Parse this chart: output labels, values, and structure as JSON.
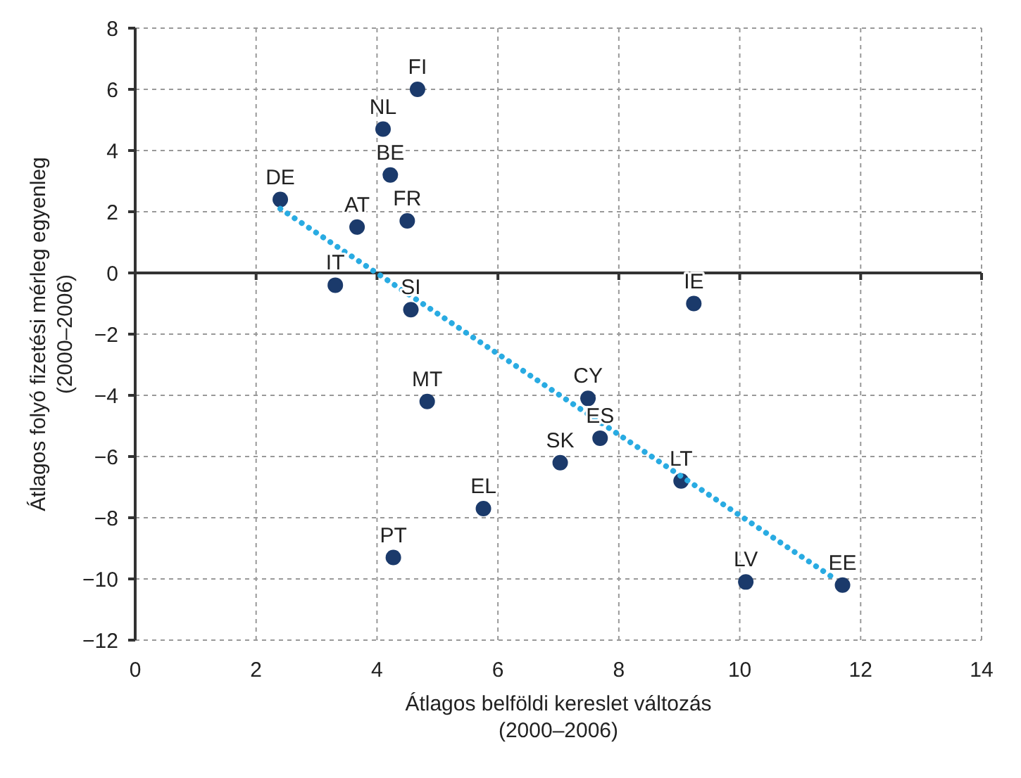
{
  "chart_data": {
    "type": "scatter",
    "xlabel": "Átlagos belföldi kereslet változás\n(2000–2006)",
    "ylabel": "Átlagos  folyó fizetési mérleg egyenleg\n(2000–2006)",
    "xlim": [
      0,
      14
    ],
    "xticks": [
      0,
      2,
      4,
      6,
      8,
      10,
      12,
      14
    ],
    "ylim": [
      -12,
      8
    ],
    "yticks": [
      -12,
      -10,
      -8,
      -6,
      -4,
      -2,
      0,
      2,
      4,
      6,
      8
    ],
    "grid": true,
    "marker": "circle",
    "series": [
      {
        "color": "#1b3a6b",
        "x": [
          2.4,
          4.67,
          4.1,
          4.22,
          3.67,
          4.5,
          3.31,
          4.56,
          9.24,
          4.83,
          7.49,
          7.69,
          7.03,
          9.03,
          5.76,
          4.27,
          10.1,
          11.7
        ],
        "values": [
          2.4,
          6.0,
          4.7,
          3.2,
          1.5,
          1.7,
          -0.4,
          -1.2,
          -1.0,
          -4.2,
          -4.1,
          -5.4,
          -6.2,
          -6.8,
          -7.7,
          -9.3,
          -10.1,
          -10.2
        ]
      },
      {
        "type": "line",
        "color": "#29abe2",
        "line_style": "dotted",
        "marker": "none",
        "x": [
          2.4,
          11.5
        ],
        "values": [
          2.1,
          -9.9
        ]
      }
    ],
    "annotations": [
      {
        "text": "DE",
        "x": 2.4,
        "y": 2.4
      },
      {
        "text": "FI",
        "x": 4.67,
        "y": 6.0
      },
      {
        "text": "NL",
        "x": 4.1,
        "y": 4.7
      },
      {
        "text": "BE",
        "x": 4.22,
        "y": 3.2
      },
      {
        "text": "AT",
        "x": 3.67,
        "y": 1.5
      },
      {
        "text": "FR",
        "x": 4.5,
        "y": 1.7
      },
      {
        "text": "IT",
        "x": 3.31,
        "y": -0.4
      },
      {
        "text": "SI",
        "x": 4.56,
        "y": -1.2
      },
      {
        "text": "IE",
        "x": 9.24,
        "y": -1.0
      },
      {
        "text": "MT",
        "x": 4.83,
        "y": -4.2
      },
      {
        "text": "CY",
        "x": 7.49,
        "y": -4.1
      },
      {
        "text": "ES",
        "x": 7.69,
        "y": -5.4
      },
      {
        "text": "SK",
        "x": 7.03,
        "y": -6.2
      },
      {
        "text": "LT",
        "x": 9.03,
        "y": -6.8
      },
      {
        "text": "EL",
        "x": 5.76,
        "y": -7.7
      },
      {
        "text": "PT",
        "x": 4.27,
        "y": -9.3
      },
      {
        "text": "LV",
        "x": 10.1,
        "y": -10.1
      },
      {
        "text": "EE",
        "x": 11.7,
        "y": -10.2
      }
    ]
  }
}
